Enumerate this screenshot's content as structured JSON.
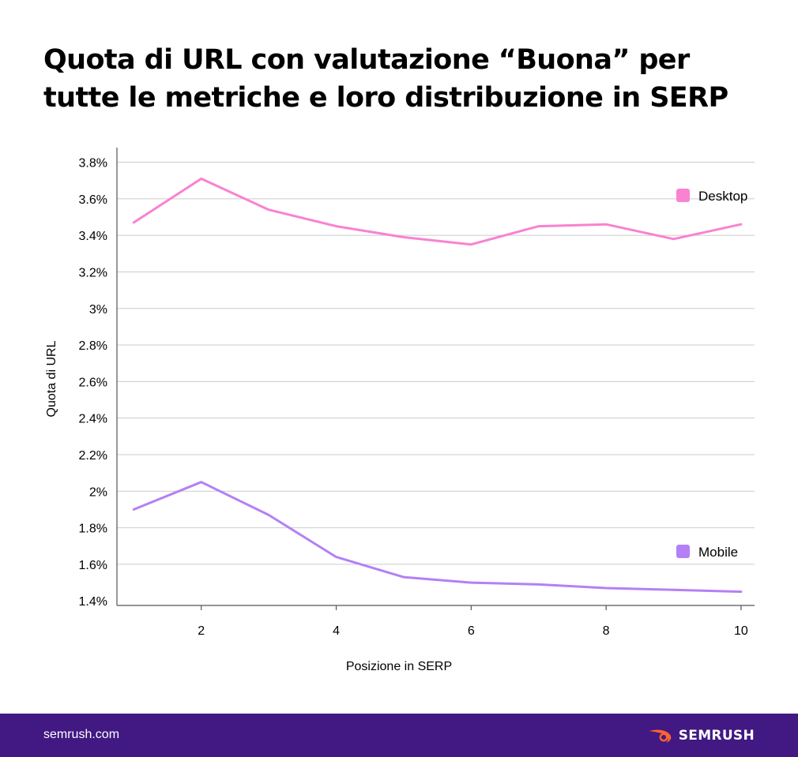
{
  "title": "Quota di URL con valutazione “Buona” per tutte le metriche e loro distribuzione in SERP",
  "colors": {
    "desktop": "#f982d2",
    "mobile": "#b480f5",
    "footer_bg": "#421983",
    "logo_accent": "#ff642d",
    "grid": "#cccccc",
    "axis": "#555555"
  },
  "chart_data": {
    "type": "line",
    "xlabel": "Posizione in SERP",
    "ylabel": "Quota di URL",
    "xlim": [
      0.75,
      10.2
    ],
    "ylim": [
      1.375,
      3.88
    ],
    "x_ticks": [
      2,
      4,
      6,
      8,
      10
    ],
    "x_tick_labels": [
      "2",
      "4",
      "6",
      "8",
      "10"
    ],
    "y_ticks": [
      1.4,
      1.6,
      1.8,
      2.0,
      2.2,
      2.4,
      2.6,
      2.8,
      3.0,
      3.2,
      3.4,
      3.6,
      3.8
    ],
    "y_tick_labels": [
      "1.4%",
      "1.6%",
      "1.8%",
      "2%",
      "2.2%",
      "2.4%",
      "2.6%",
      "2.8%",
      "3%",
      "3.2%",
      "3.4%",
      "3.6%",
      "3.8%"
    ],
    "grid": true,
    "legend": "inline-right",
    "series": [
      {
        "name": "Desktop",
        "x": [
          1,
          2,
          3,
          4,
          5,
          6,
          7,
          8,
          9,
          10
        ],
        "values": [
          3.47,
          3.71,
          3.54,
          3.45,
          3.39,
          3.35,
          3.45,
          3.46,
          3.38,
          3.46
        ]
      },
      {
        "name": "Mobile",
        "x": [
          1,
          2,
          3,
          4,
          5,
          6,
          7,
          8,
          9,
          10
        ],
        "values": [
          1.9,
          2.05,
          1.87,
          1.64,
          1.53,
          1.5,
          1.49,
          1.47,
          1.46,
          1.45
        ]
      }
    ]
  },
  "footer": {
    "site": "semrush.com",
    "logo": "SEMRUSH"
  }
}
